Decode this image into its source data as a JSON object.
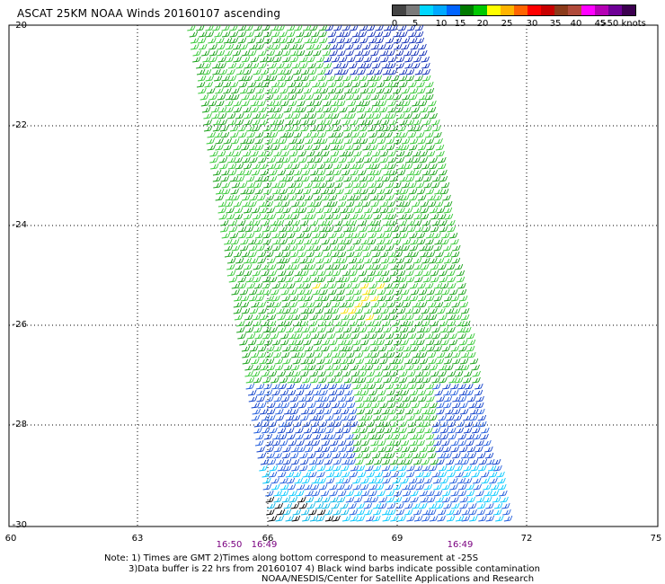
{
  "title": "ASCAT 25KM NOAA Winds 20160107 ascending",
  "legend": {
    "labels": [
      "0",
      "5",
      "10",
      "15",
      "20",
      "25",
      "30",
      "35",
      "40",
      "45",
      ">50 knots"
    ],
    "colors": [
      "#444444",
      "#7a7a7a",
      "#00d7ff",
      "#00a9ff",
      "#0064ff",
      "#007a00",
      "#00c800",
      "#ffff00",
      "#ffb400",
      "#ff6400",
      "#ff0000",
      "#c80000",
      "#8b3a1a",
      "#b04a3a",
      "#ff00ff",
      "#b400b4",
      "#6e0096",
      "#3c0050"
    ]
  },
  "axes": {
    "y_labels": [
      "-20",
      "-22",
      "-24",
      "-26",
      "-28",
      "-30"
    ],
    "x_labels": [
      "60",
      "63",
      "66",
      "69",
      "72",
      "75"
    ]
  },
  "pass_times": [
    "16:50",
    "16:49",
    "16:49"
  ],
  "notes": {
    "line1": "Note: 1) Times are GMT 2)Times along bottom correspond to measurement at -25S",
    "line2": "3)Data buffer is 22 hrs from 20160107 4) Black wind barbs indicate possible contamination",
    "line3": "NOAA/NESDIS/Center for Satellite Applications and Research"
  }
}
